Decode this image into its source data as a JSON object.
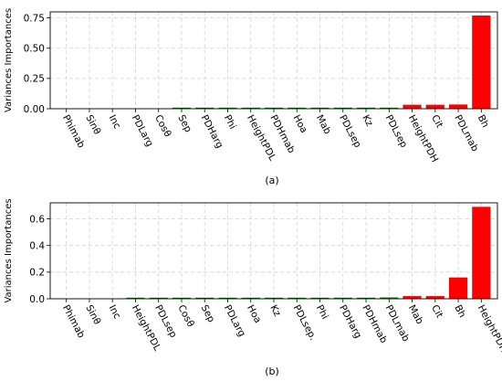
{
  "chart_data": [
    {
      "type": "bar",
      "caption": "(a)",
      "ylabel": "Variances Importances",
      "ylim": [
        0,
        0.8
      ],
      "yticks": [
        "0.00",
        "0.25",
        "0.50",
        "0.75"
      ],
      "grid": true,
      "categories": [
        "Phimab",
        "Sinθ",
        "Inc",
        "PDLarg",
        "Cosθ",
        "Sep",
        "PDHarg",
        "Phi",
        "HeightPDL",
        "PDHmab",
        "Hoa",
        "Mab",
        "PDLsep",
        "Kz",
        "PDLsep",
        "HeightPDH",
        "Cit",
        "PDLmab",
        "Bh"
      ],
      "values": [
        0.0,
        0.0,
        0.0,
        0.0,
        0.0,
        0.002,
        0.002,
        0.002,
        0.002,
        0.002,
        0.002,
        0.002,
        0.002,
        0.003,
        0.008,
        0.033,
        0.033,
        0.035,
        0.77
      ],
      "colors": [
        "#008000",
        "#008000",
        "#008000",
        "#008000",
        "#008000",
        "#008000",
        "#008000",
        "#008000",
        "#008000",
        "#008000",
        "#008000",
        "#008000",
        "#008000",
        "#008000",
        "#008000",
        "#ff0000",
        "#ff0000",
        "#ff0000",
        "#ff0000"
      ]
    },
    {
      "type": "bar",
      "caption": "(b)",
      "ylabel": "Variances Importances",
      "ylim": [
        0,
        0.72
      ],
      "yticks": [
        "0.0",
        "0.2",
        "0.4",
        "0.6"
      ],
      "grid": true,
      "categories": [
        "Phimab",
        "Sinθ",
        "Inc",
        "HeightPDL",
        "PDLsep",
        "Cosθ",
        "Sep",
        "PDLarg",
        "Hoa",
        "Kz",
        "PDLsep.",
        "Phi",
        "PDHarg",
        "PDHmab",
        "PDLmab",
        "Mab",
        "Cit",
        "Bh",
        "HeightPDH"
      ],
      "values": [
        0.0,
        0.0,
        0.0,
        0.002,
        0.003,
        0.003,
        0.003,
        0.003,
        0.003,
        0.003,
        0.003,
        0.004,
        0.004,
        0.008,
        0.01,
        0.02,
        0.02,
        0.16,
        0.69
      ],
      "colors": [
        "#008000",
        "#008000",
        "#008000",
        "#008000",
        "#008000",
        "#008000",
        "#008000",
        "#008000",
        "#008000",
        "#008000",
        "#008000",
        "#008000",
        "#008000",
        "#008000",
        "#008000",
        "#ff0000",
        "#ff0000",
        "#ff0000",
        "#ff0000"
      ]
    }
  ]
}
